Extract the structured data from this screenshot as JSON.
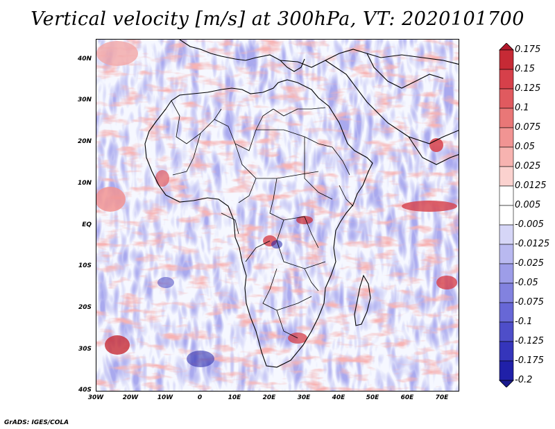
{
  "title": "Vertical velocity [m/s] at 300hPa, VT: 2020101700",
  "credit": "GrADS: IGES/COLA",
  "map": {
    "region": "Africa",
    "lon_labels": [
      "30W",
      "20W",
      "10W",
      "0",
      "10E",
      "20E",
      "30E",
      "40E",
      "50E",
      "60E",
      "70E"
    ],
    "lat_labels": [
      "40N",
      "30N",
      "20N",
      "10N",
      "EQ",
      "10S",
      "20S",
      "30S",
      "40S"
    ],
    "lon_range": [
      -30,
      75
    ],
    "lat_range": [
      -40,
      45
    ]
  },
  "colorbar": {
    "levels": [
      "0.175",
      "0.15",
      "0.125",
      "0.1",
      "0.075",
      "0.05",
      "0.025",
      "0.0125",
      "0.005",
      "-0.005",
      "-0.0125",
      "-0.025",
      "-0.05",
      "-0.075",
      "-0.1",
      "-0.125",
      "-0.175",
      "-0.2"
    ],
    "colors": [
      "#b2182b",
      "#c62a35",
      "#d6404a",
      "#e05a5f",
      "#e97777",
      "#f19493",
      "#f7b3b0",
      "#fbd2cf",
      "#ffffff",
      "#ffffff",
      "#d6d6f7",
      "#b9b9f0",
      "#9d9de8",
      "#8282df",
      "#6767d6",
      "#4e4ec9",
      "#3535bb",
      "#2020a8",
      "#1a1a8e"
    ]
  }
}
